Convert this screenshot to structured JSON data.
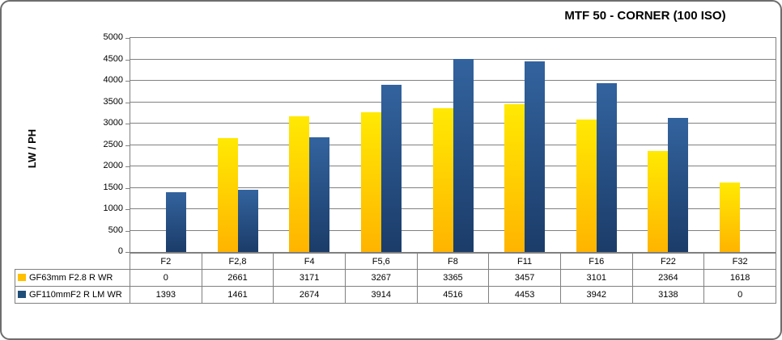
{
  "chart_data": {
    "type": "bar",
    "title": "MTF 50 - CORNER (100 ISO)",
    "ylabel": "LW / PH",
    "xlabel": "",
    "ylim": [
      0,
      5000
    ],
    "y_tick_step": 500,
    "y_ticks": [
      5000,
      4500,
      4000,
      3500,
      3000,
      2500,
      2000,
      1500,
      1000,
      500,
      0
    ],
    "grid": true,
    "legend_position": "data-table-left",
    "categories": [
      "F2",
      "F2,8",
      "F4",
      "F5,6",
      "F8",
      "F11",
      "F16",
      "F22",
      "F32"
    ],
    "series": [
      {
        "name": "GF63mm F2.8 R WR",
        "values": [
          0,
          2661,
          3171,
          3267,
          3365,
          3457,
          3101,
          2364,
          1618
        ],
        "fill_top": "#ffe903",
        "fill_bottom": "#ffb400",
        "key_color": "#ffc000"
      },
      {
        "name": "GF110mmF2 R LM WR",
        "values": [
          1393,
          1461,
          2674,
          3914,
          4516,
          4453,
          3942,
          3138,
          0
        ],
        "fill_top": "#33639e",
        "fill_bottom": "#1b3c69",
        "key_color": "#1f4e79"
      }
    ]
  },
  "colors": {
    "grid": "#808080",
    "plot_border": "#808080",
    "table_border": "#808080",
    "frame_border": "#6d6d6d",
    "background": "#ffffff",
    "text": "#000000"
  }
}
